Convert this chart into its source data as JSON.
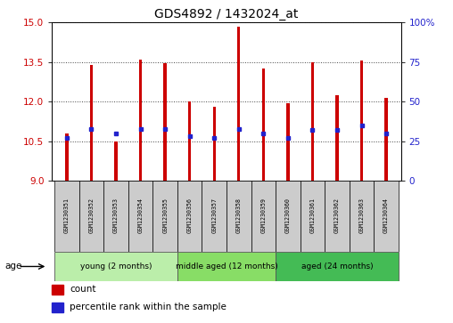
{
  "title": "GDS4892 / 1432024_at",
  "samples": [
    "GSM1230351",
    "GSM1230352",
    "GSM1230353",
    "GSM1230354",
    "GSM1230355",
    "GSM1230356",
    "GSM1230357",
    "GSM1230358",
    "GSM1230359",
    "GSM1230360",
    "GSM1230361",
    "GSM1230362",
    "GSM1230363",
    "GSM1230364"
  ],
  "counts": [
    10.8,
    13.4,
    10.5,
    13.6,
    13.45,
    12.0,
    11.8,
    14.85,
    13.25,
    11.95,
    13.5,
    12.25,
    13.55,
    12.15
  ],
  "percentile_ranks": [
    27,
    33,
    30,
    33,
    33,
    28,
    27,
    33,
    30,
    27,
    32,
    32,
    35,
    30
  ],
  "y_min": 9,
  "y_max": 15,
  "yticks_left": [
    9,
    10.5,
    12,
    13.5,
    15
  ],
  "yticks_right": [
    0,
    25,
    50,
    75,
    100
  ],
  "bar_color": "#cc0000",
  "marker_color": "#2222cc",
  "bar_width": 0.12,
  "groups": [
    {
      "label": "young (2 months)",
      "start": 0,
      "end": 5,
      "color": "#bbeeaa"
    },
    {
      "label": "middle aged (12 months)",
      "start": 5,
      "end": 9,
      "color": "#88dd66"
    },
    {
      "label": "aged (24 months)",
      "start": 9,
      "end": 14,
      "color": "#44bb55"
    }
  ],
  "age_label": "age",
  "legend_count_label": "count",
  "legend_pct_label": "percentile rank within the sample",
  "tick_color_left": "#cc0000",
  "tick_color_right": "#2222cc",
  "grid_color": "#444444",
  "cell_color": "#cccccc"
}
